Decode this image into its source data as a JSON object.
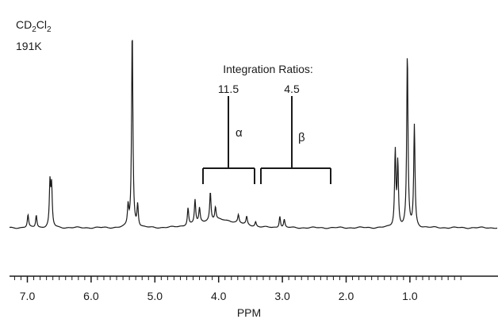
{
  "chart_data": {
    "type": "line",
    "solvent": "CD",
    "solvent_sub1": "2",
    "solvent_mid": "Cl",
    "solvent_sub2": "2",
    "temperature": "191K",
    "xlabel": "PPM",
    "xlim": [
      7.25,
      0.6
    ],
    "x_reversed": true,
    "ticks": [
      "7.0",
      "6.0",
      "5.0",
      "4.0",
      "3.0",
      "2.0",
      "1.0"
    ],
    "tick_values": [
      7.0,
      6.0,
      5.0,
      4.0,
      3.0,
      2.0,
      1.0
    ],
    "grid": false,
    "peaks": [
      {
        "ppm": 6.99,
        "height": 16
      },
      {
        "ppm": 6.86,
        "height": 16
      },
      {
        "ppm": 6.645,
        "height": 55
      },
      {
        "ppm": 6.62,
        "height": 50
      },
      {
        "ppm": 5.42,
        "height": 25
      },
      {
        "ppm": 5.355,
        "height": 250
      },
      {
        "ppm": 5.27,
        "height": 28
      },
      {
        "ppm": 4.48,
        "height": 22
      },
      {
        "ppm": 4.37,
        "height": 30
      },
      {
        "ppm": 4.3,
        "height": 18
      },
      {
        "ppm": 4.13,
        "height": 36
      },
      {
        "ppm": 4.05,
        "height": 16
      },
      {
        "ppm": 3.69,
        "height": 10
      },
      {
        "ppm": 3.56,
        "height": 10
      },
      {
        "ppm": 3.42,
        "height": 6
      },
      {
        "ppm": 3.04,
        "height": 15
      },
      {
        "ppm": 2.97,
        "height": 10
      },
      {
        "ppm": 1.23,
        "height": 95
      },
      {
        "ppm": 1.19,
        "height": 80
      },
      {
        "ppm": 1.04,
        "height": 218
      },
      {
        "ppm": 0.93,
        "height": 128
      }
    ],
    "integration_title": "Integration Ratios:",
    "integrations": [
      {
        "label": "α",
        "ratio": "11.5",
        "from": 4.63,
        "to": 3.9
      },
      {
        "label": "β",
        "ratio": "4.5",
        "from": 3.83,
        "to": 2.88
      }
    ]
  }
}
